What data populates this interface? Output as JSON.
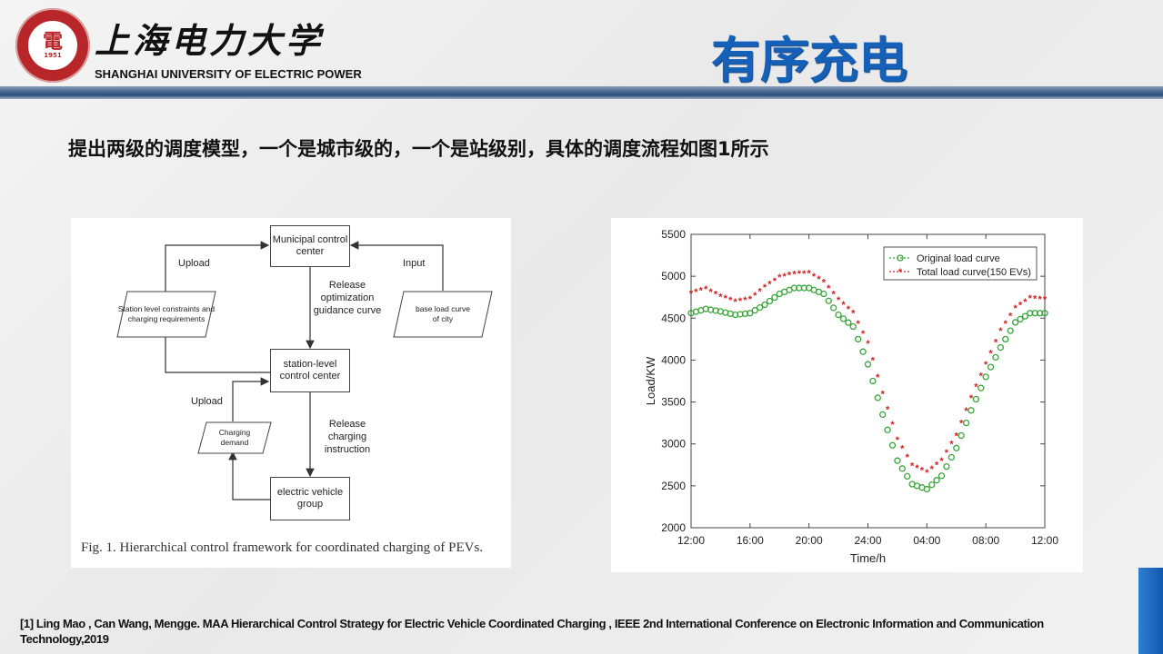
{
  "header": {
    "university_cn": "上海电力大学",
    "university_en": "SHANGHAI UNIVERSITY OF ELECTRIC POWER",
    "logo_year": "1951",
    "logo_glyph": "電",
    "title": "有序充电"
  },
  "subtitle": "提出两级的调度模型，一个是城市级的，一个是站级别，具体的调度流程如图1所示",
  "diagram": {
    "municipal_center": "Municipal control center",
    "station_center": "station-level control center",
    "ev_group": "electric vehicle group",
    "station_constraints": "Station level constraints and charging requirements",
    "base_load": "base load curve of city",
    "charging_demand": "Charging demand",
    "upload_top": "Upload",
    "upload_bottom": "Upload",
    "input": "Input",
    "release_optimization": "Release optimization guidance curve",
    "release_charging": "Release charging instruction",
    "caption": "Fig. 1.   Hierarchical control framework for coordinated charging of PEVs."
  },
  "colors": {
    "title_blue": "#1560b8",
    "logo_red": "#b8262a",
    "original_curve": "#3aa53a",
    "total_curve": "#cc2222"
  },
  "chart_data": {
    "type": "line",
    "xlabel": "Time/h",
    "ylabel": "Load/KW",
    "ylim": [
      2000,
      5500
    ],
    "yticks": [
      "2000",
      "2500",
      "3000",
      "3500",
      "4000",
      "4500",
      "5000",
      "5500"
    ],
    "xticks": [
      "12:00",
      "16:00",
      "20:00",
      "24:00",
      "04:00",
      "08:00",
      "12:00"
    ],
    "x_hours_from_noon": [
      0,
      1,
      2,
      3,
      4,
      5,
      6,
      7,
      8,
      9,
      10,
      11,
      12,
      13,
      14,
      15,
      16,
      17,
      18,
      19,
      20,
      21,
      22,
      23,
      24
    ],
    "series": [
      {
        "name": "Original load curve",
        "marker": "circle",
        "color": "#3aa53a",
        "values": [
          4560,
          4610,
          4580,
          4540,
          4560,
          4660,
          4790,
          4860,
          4860,
          4790,
          4540,
          4400,
          3950,
          3350,
          2800,
          2520,
          2460,
          2620,
          2950,
          3400,
          3800,
          4150,
          4450,
          4560,
          4560
        ]
      },
      {
        "name": "Total load curve(150 EVs)",
        "marker": "star",
        "color": "#cc2222",
        "values": [
          4800,
          4850,
          4760,
          4700,
          4730,
          4870,
          4990,
          5030,
          5040,
          4930,
          4720,
          4560,
          4200,
          3600,
          3050,
          2740,
          2660,
          2800,
          3100,
          3550,
          3950,
          4350,
          4620,
          4740,
          4730
        ]
      }
    ],
    "legend_position": "top-right",
    "grid": false
  },
  "reference": "[1] Ling Mao , Can Wang, Mengge. MAA Hierarchical Control Strategy for Electric Vehicle Coordinated Charging , IEEE 2nd International Conference on Electronic Information and Communication Technology,2019"
}
